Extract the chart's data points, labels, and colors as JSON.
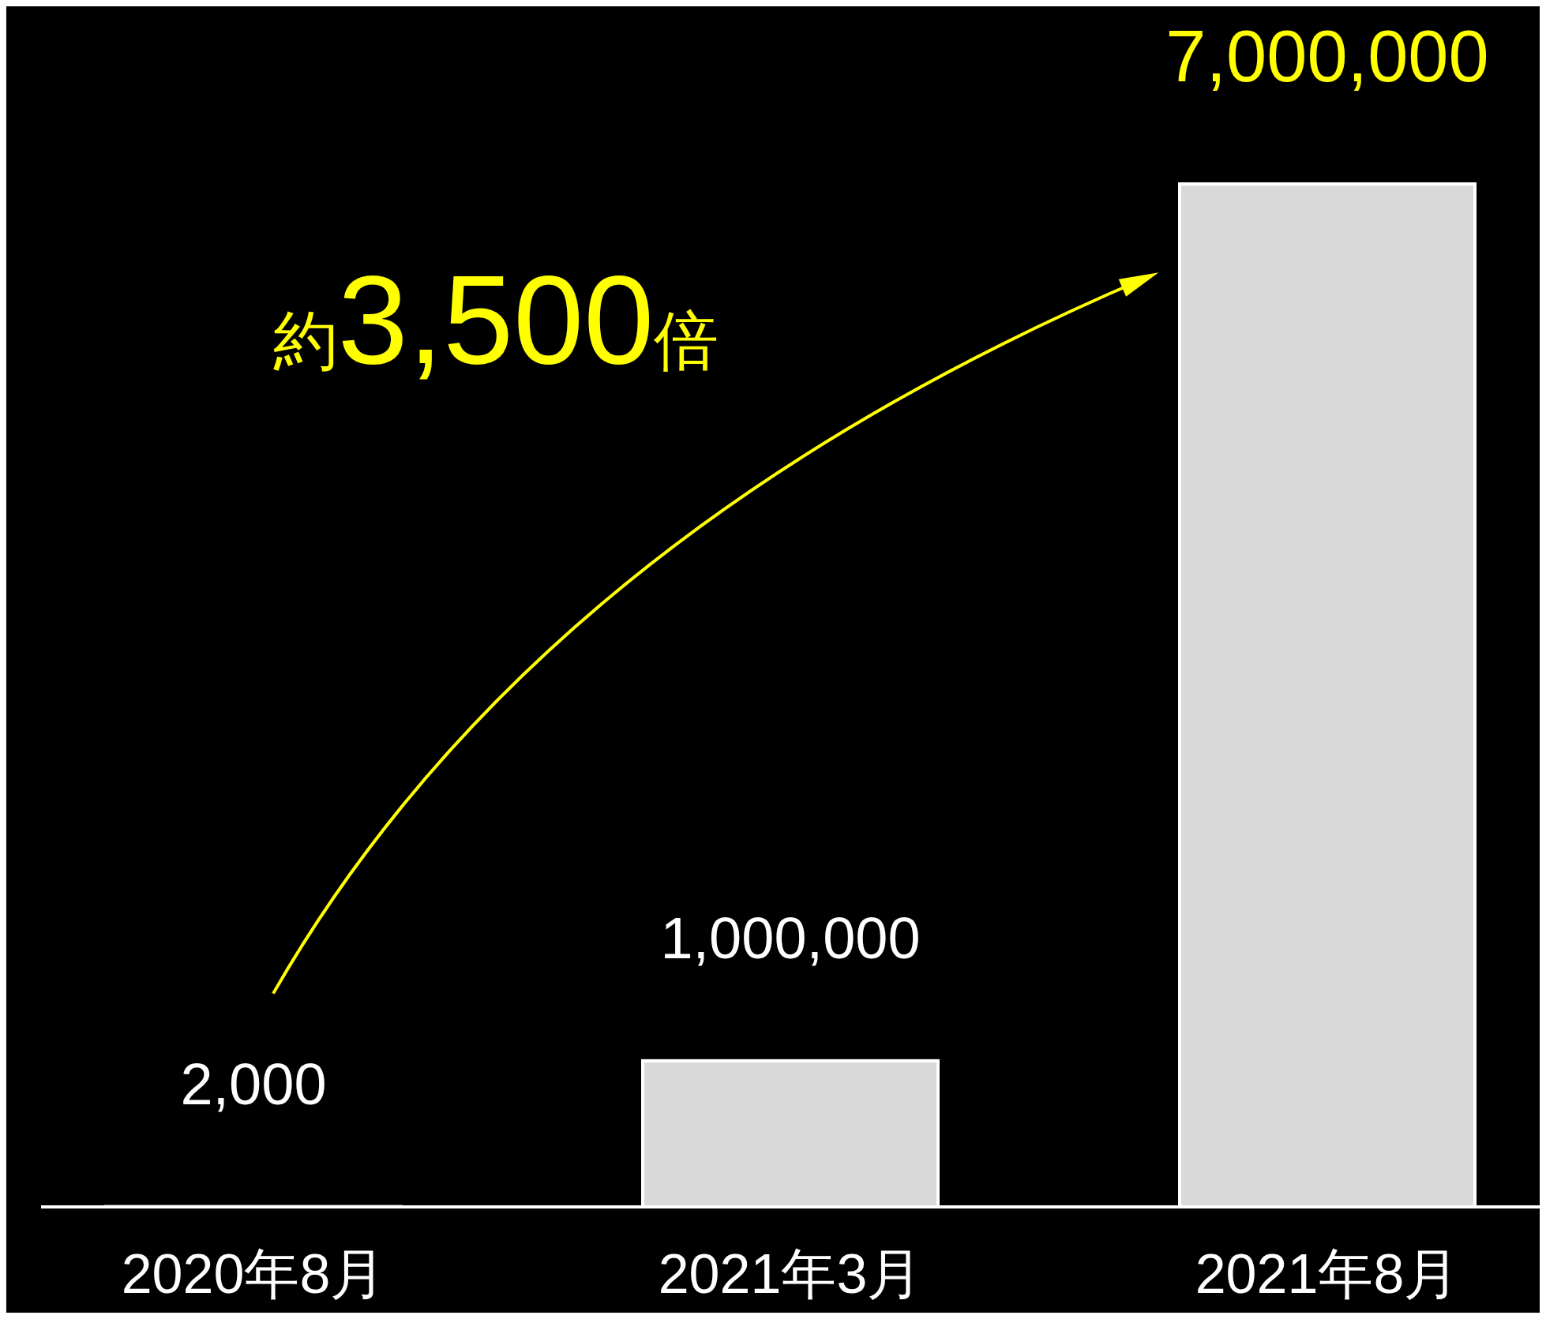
{
  "chart_data": {
    "type": "bar",
    "categories": [
      "2020年8月",
      "2021年3月",
      "2021年8月"
    ],
    "values": [
      2000,
      1000000,
      7000000
    ],
    "color": "#d9d9d9",
    "value_labels": [
      "2,000",
      "1,000,000",
      "7,000,000"
    ],
    "tick_labels": "x",
    "annotations": [
      "約3,500倍"
    ]
  }
}
